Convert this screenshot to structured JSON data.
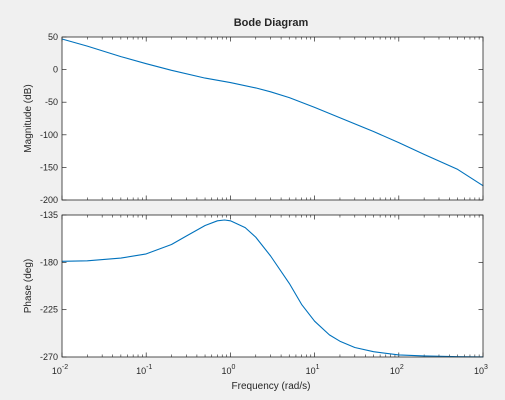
{
  "figure": {
    "background": "#f0f0f0",
    "title": "Bode Diagram",
    "xlabel": "Frequency  (rad/s)"
  },
  "chart_data": [
    {
      "type": "line",
      "name": "magnitude",
      "ylabel": "Magnitude (dB)",
      "xscale": "log",
      "xlim": [
        0.01,
        1000
      ],
      "ylim": [
        -200,
        50
      ],
      "yticks": [
        50,
        0,
        -50,
        -100,
        -150,
        -200
      ],
      "grid": false,
      "line_color": "#0072bd",
      "series": [
        {
          "x": [
            0.01,
            0.02,
            0.05,
            0.1,
            0.2,
            0.5,
            1,
            2,
            3,
            5,
            10,
            20,
            50,
            100,
            200,
            500,
            1000
          ],
          "y": [
            47,
            36,
            20,
            9,
            -1,
            -13,
            -20,
            -28,
            -34,
            -43,
            -58,
            -74,
            -95,
            -112,
            -130,
            -153,
            -178
          ]
        }
      ]
    },
    {
      "type": "line",
      "name": "phase",
      "ylabel": "Phase (deg)",
      "xscale": "log",
      "xlim": [
        0.01,
        1000
      ],
      "ylim": [
        -270,
        -135
      ],
      "yticks": [
        -135,
        -180,
        -225,
        -270
      ],
      "grid": false,
      "line_color": "#0072bd",
      "series": [
        {
          "x": [
            0.01,
            0.02,
            0.05,
            0.1,
            0.2,
            0.3,
            0.5,
            0.7,
            0.85,
            1,
            1.5,
            2,
            3,
            5,
            7,
            10,
            15,
            20,
            30,
            50,
            100,
            200,
            500,
            1000
          ],
          "y": [
            -179,
            -178.5,
            -176,
            -172,
            -163,
            -155,
            -145,
            -140.5,
            -139.8,
            -140.5,
            -147,
            -156,
            -174,
            -200,
            -220,
            -236,
            -249,
            -255,
            -261,
            -265,
            -268,
            -269,
            -269.7,
            -269.9
          ]
        }
      ]
    }
  ],
  "xticks": [
    {
      "base": "10",
      "exp": "-2",
      "value": 0.01
    },
    {
      "base": "10",
      "exp": "-1",
      "value": 0.1
    },
    {
      "base": "10",
      "exp": "0",
      "value": 1
    },
    {
      "base": "10",
      "exp": "1",
      "value": 10
    },
    {
      "base": "10",
      "exp": "2",
      "value": 100
    },
    {
      "base": "10",
      "exp": "3",
      "value": 1000
    }
  ]
}
